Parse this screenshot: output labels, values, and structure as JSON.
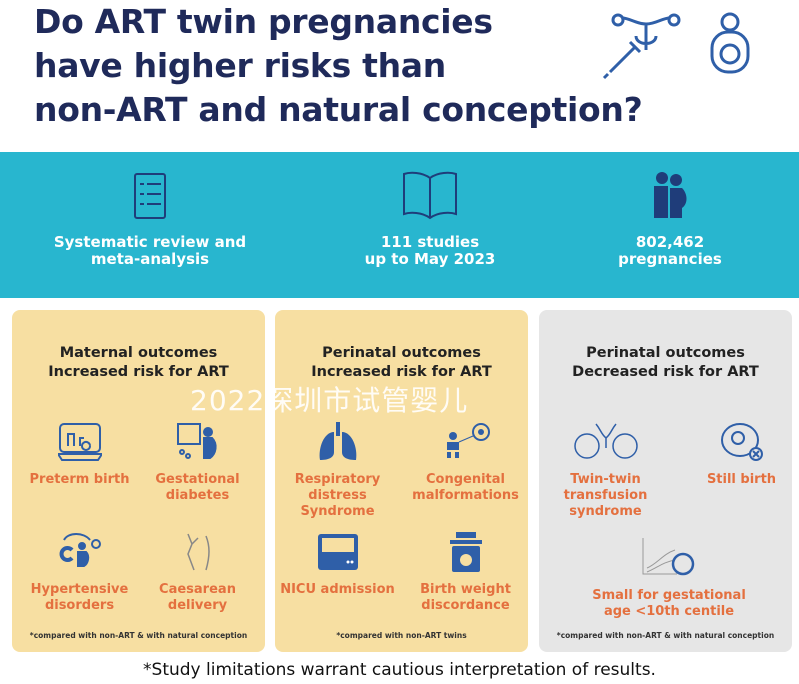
{
  "title": {
    "line1": "Do ART twin pregnancies",
    "line2": "have higher risks than",
    "line3": "non-ART and natural conception?"
  },
  "stats": [
    {
      "icon": "clipboard-checklist-icon",
      "line1": "Systematic review and",
      "line2": "meta-analysis"
    },
    {
      "icon": "open-book-icon",
      "line1": "111 studies",
      "line2": "up to May 2023"
    },
    {
      "icon": "pregnant-couple-icon",
      "line1": "802,462",
      "line2": "pregnancies"
    }
  ],
  "panels": [
    {
      "heading1": "Maternal outcomes",
      "heading2": "Increased risk for ART",
      "items": [
        {
          "icon": "incubator-icon",
          "label1": "Preterm birth",
          "label2": ""
        },
        {
          "icon": "glucose-pregnant-woman-icon",
          "label1": "Gestational",
          "label2": "diabetes"
        },
        {
          "icon": "blood-pressure-pregnant-icon",
          "label1": "Hypertensive",
          "label2": "disorders"
        },
        {
          "icon": "caesarean-icon",
          "label1": "Caesarean",
          "label2": "delivery"
        }
      ],
      "note": "*compared with non-ART & with natural conception"
    },
    {
      "heading1": "Perinatal outcomes",
      "heading2": "Increased risk for ART",
      "items": [
        {
          "icon": "lungs-icon",
          "label1": "Respiratory distress",
          "label2": "Syndrome"
        },
        {
          "icon": "baby-heart-icon",
          "label1": "Congenital",
          "label2": "malformations"
        },
        {
          "icon": "nicu-incubator-icon",
          "label1": "NICU admission",
          "label2": ""
        },
        {
          "icon": "baby-scale-icon",
          "label1": "Birth weight",
          "label2": "discordance"
        }
      ],
      "note": "*compared with non-ART twins"
    },
    {
      "heading1": "Perinatal outcomes",
      "heading2": "Decreased risk for ART",
      "items": [
        {
          "icon": "twin-fetuses-icon",
          "label1": "Twin-twin",
          "label2": "transfusion",
          "label3": "syndrome"
        },
        {
          "icon": "fetus-cross-icon",
          "label1": "Still birth",
          "label2": ""
        },
        {
          "icon": "growth-chart-fetus-icon",
          "label1": "Small for gestational",
          "label2": "age <10th centile"
        }
      ],
      "note": "*compared with non-ART & with natural conception"
    }
  ],
  "footer": "*Study limitations warrant cautious interpretation of results.",
  "watermark": "2022深圳市试管婴儿",
  "colors": {
    "title": "#1f2a5a",
    "band": "#28b6cf",
    "increased_panel": "#f7dfa2",
    "decreased_panel": "#e6e6e6",
    "label": "#e4703f",
    "icon": "#2f5fa8"
  }
}
